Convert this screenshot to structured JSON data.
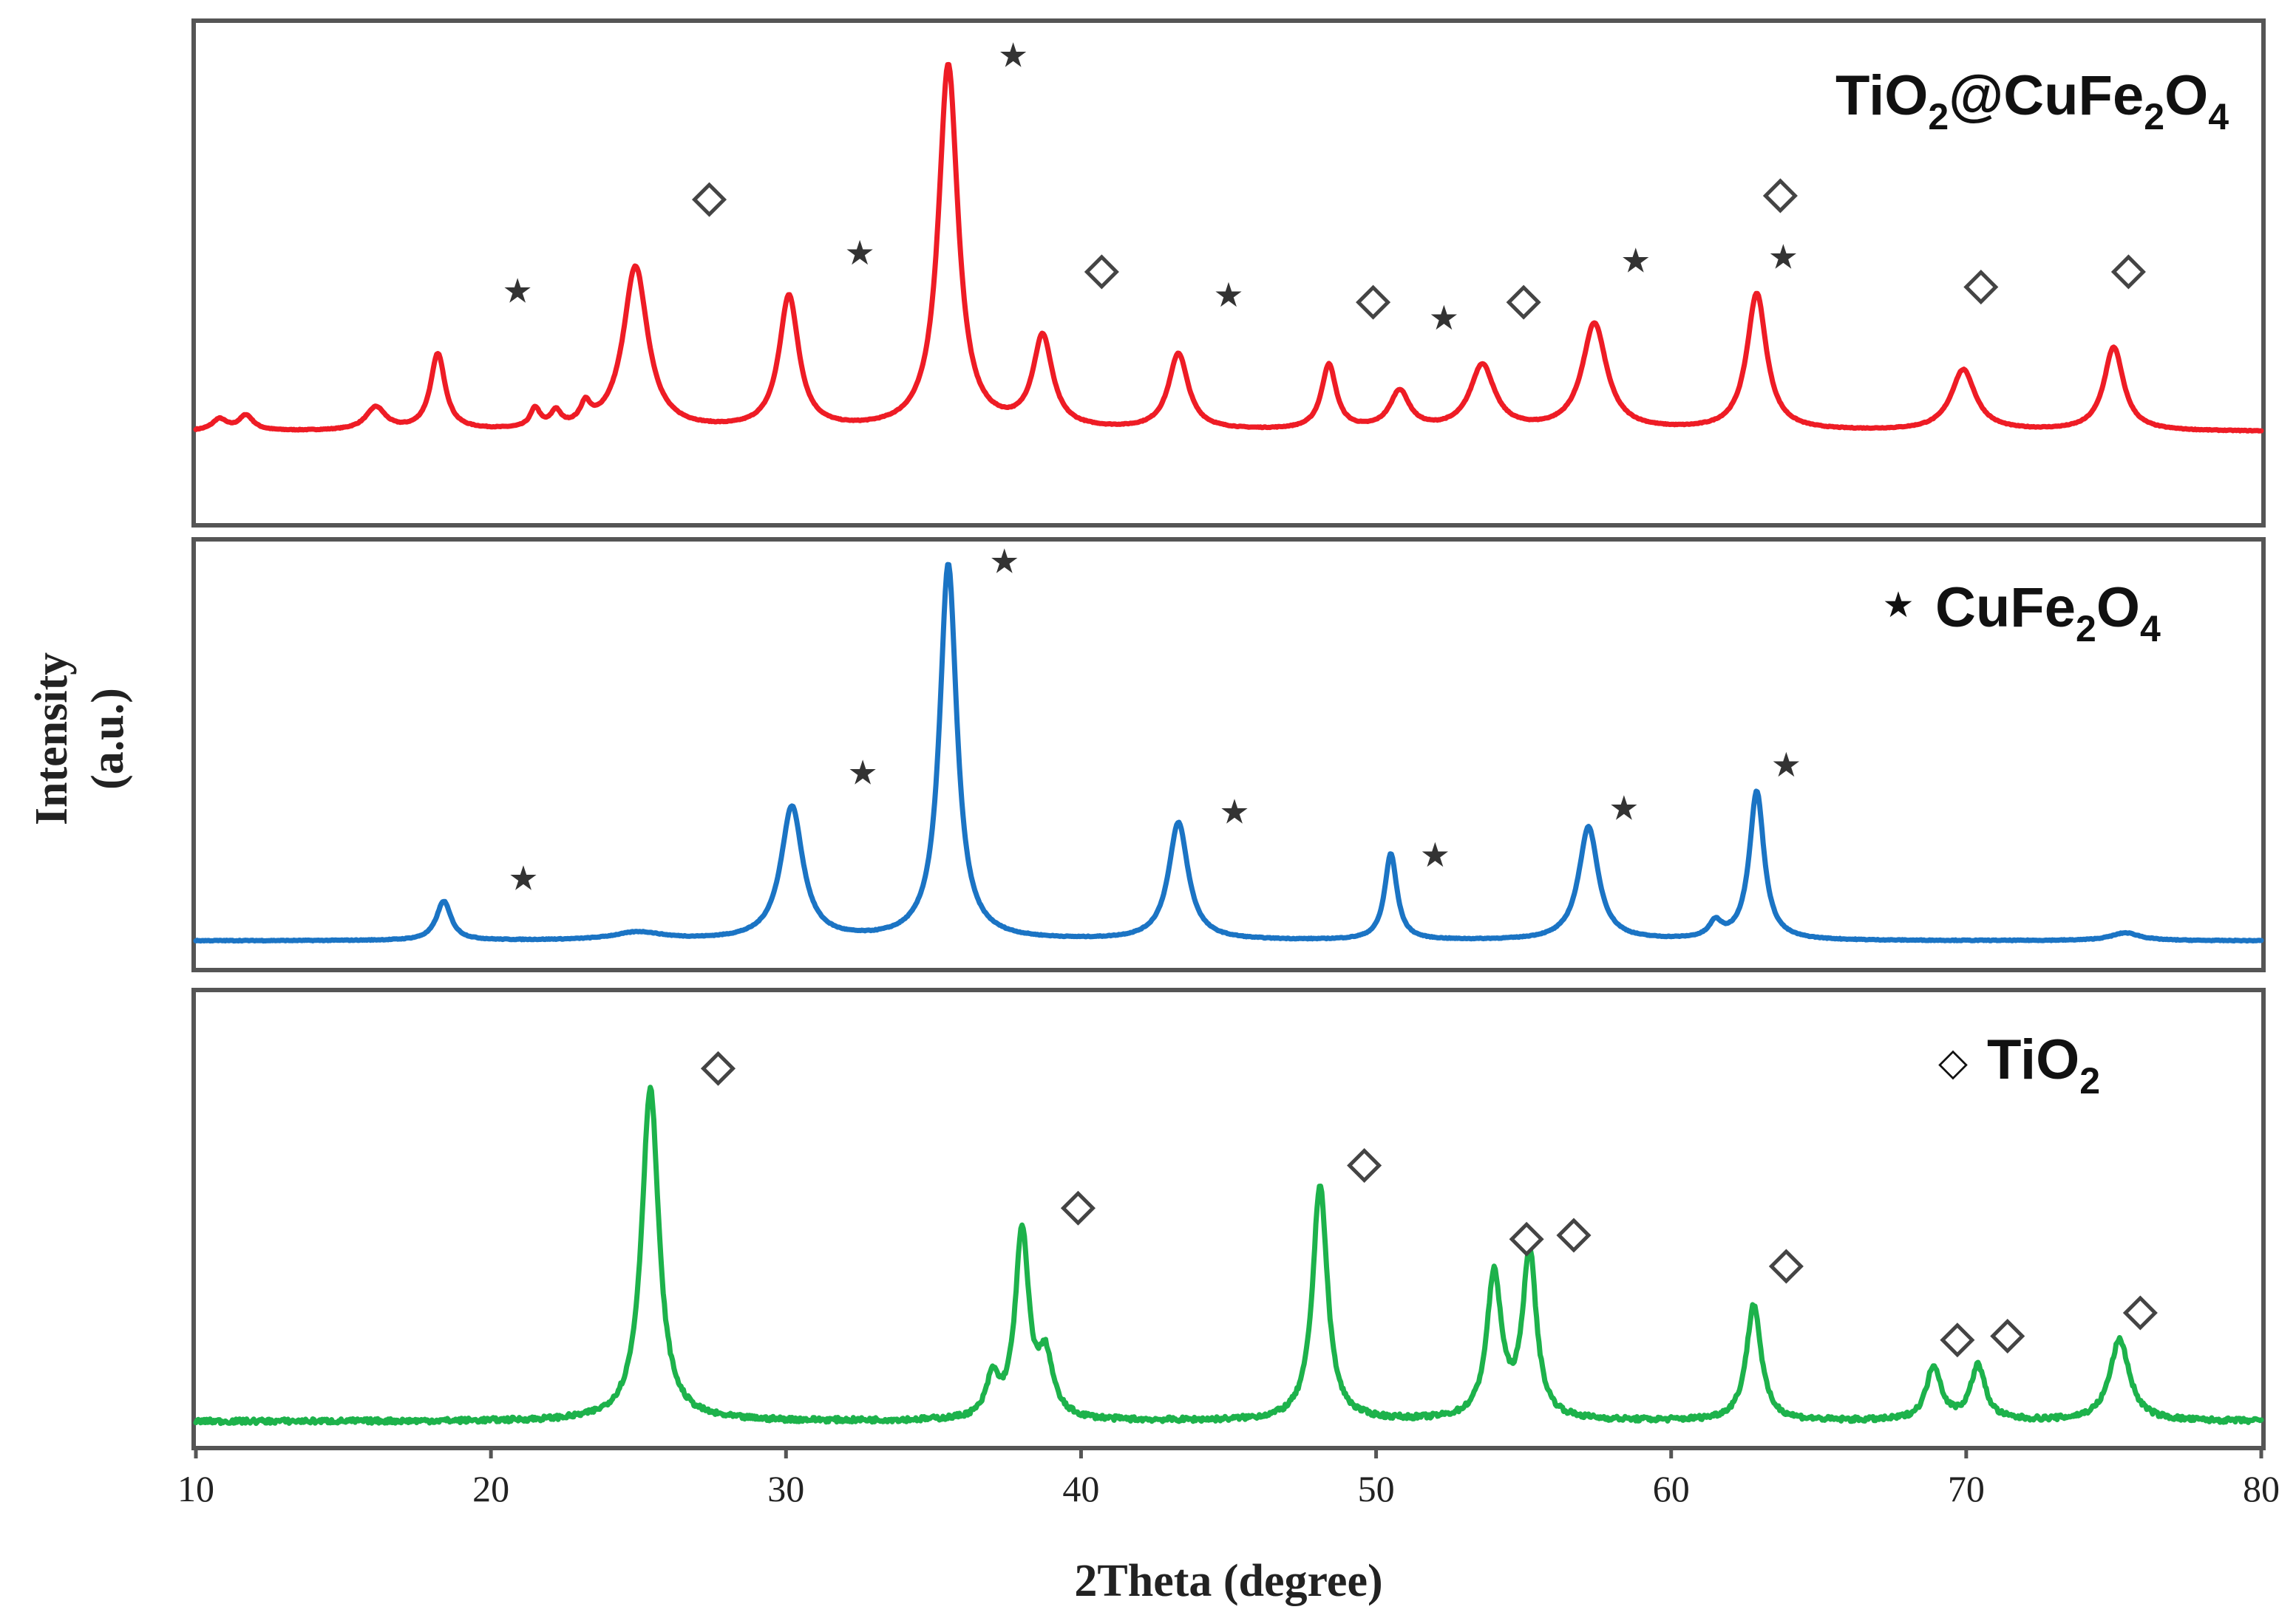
{
  "chart_data": {
    "type": "line",
    "xlabel": "2Theta (degree)",
    "ylabel_line1": "Intensity",
    "ylabel_line2": "(a.u.)",
    "xlim": [
      10,
      80
    ],
    "x_ticks": [
      "10",
      "20",
      "30",
      "40",
      "50",
      "60",
      "70",
      "80"
    ],
    "grid": false,
    "legend": {
      "star_symbol": "★",
      "star_label": "CuFe2O4",
      "diamond_symbol": "◇",
      "diamond_label": "TiO2"
    },
    "panels": [
      {
        "name": "TiO2@CuFe2O4",
        "label": {
          "base1": "TiO",
          "sub1": "2",
          "base2": "@CuFe",
          "sub2": "2",
          "base3": "O",
          "sub3": "4"
        },
        "color": "#ee1c25",
        "baseline": 0.05,
        "peaks": [
          {
            "x": 10.8,
            "h": 0.03,
            "w": 0.3
          },
          {
            "x": 11.7,
            "h": 0.04,
            "w": 0.3
          },
          {
            "x": 16.1,
            "h": 0.06,
            "w": 0.4
          },
          {
            "x": 18.2,
            "h": 0.2,
            "w": 0.3
          },
          {
            "x": 21.5,
            "h": 0.05,
            "w": 0.2
          },
          {
            "x": 22.2,
            "h": 0.04,
            "w": 0.2
          },
          {
            "x": 23.2,
            "h": 0.05,
            "w": 0.2
          },
          {
            "x": 24.9,
            "h": 0.43,
            "w": 0.5
          },
          {
            "x": 30.1,
            "h": 0.35,
            "w": 0.4
          },
          {
            "x": 35.5,
            "h": 0.96,
            "w": 0.4
          },
          {
            "x": 38.7,
            "h": 0.24,
            "w": 0.4
          },
          {
            "x": 43.3,
            "h": 0.2,
            "w": 0.4
          },
          {
            "x": 48.4,
            "h": 0.17,
            "w": 0.3
          },
          {
            "x": 50.8,
            "h": 0.1,
            "w": 0.4
          },
          {
            "x": 53.6,
            "h": 0.17,
            "w": 0.5
          },
          {
            "x": 57.4,
            "h": 0.28,
            "w": 0.5
          },
          {
            "x": 62.9,
            "h": 0.36,
            "w": 0.4
          },
          {
            "x": 69.9,
            "h": 0.16,
            "w": 0.5
          },
          {
            "x": 75.0,
            "h": 0.22,
            "w": 0.4
          }
        ],
        "stars": [
          20.9,
          32.5,
          37.7,
          45.0,
          52.3,
          58.8,
          63.8
        ],
        "star_heights": [
          0.42,
          0.52,
          1.04,
          0.41,
          0.35,
          0.5,
          0.51
        ],
        "diamonds": [
          27.4,
          40.7,
          49.9,
          55.0,
          63.7,
          70.5,
          75.5
        ],
        "diamond_heights": [
          0.66,
          0.47,
          0.39,
          0.39,
          0.67,
          0.43,
          0.47
        ]
      },
      {
        "name": "CuFe2O4",
        "label": {
          "base1": "CuFe",
          "sub1": "2",
          "base2": "O",
          "sub2": "4"
        },
        "color": "#1b74c4",
        "baseline": 0.05,
        "peaks": [
          {
            "x": 18.4,
            "h": 0.1,
            "w": 0.3
          },
          {
            "x": 25.0,
            "h": 0.02,
            "w": 1.0
          },
          {
            "x": 30.2,
            "h": 0.34,
            "w": 0.45
          },
          {
            "x": 35.5,
            "h": 0.96,
            "w": 0.35
          },
          {
            "x": 43.3,
            "h": 0.3,
            "w": 0.4
          },
          {
            "x": 50.5,
            "h": 0.22,
            "w": 0.25
          },
          {
            "x": 57.2,
            "h": 0.29,
            "w": 0.4
          },
          {
            "x": 61.5,
            "h": 0.04,
            "w": 0.25
          },
          {
            "x": 62.9,
            "h": 0.38,
            "w": 0.3
          },
          {
            "x": 75.4,
            "h": 0.02,
            "w": 0.6
          }
        ],
        "stars": [
          21.1,
          32.6,
          37.4,
          45.2,
          52.0,
          58.4,
          63.9
        ],
        "star_heights": [
          0.21,
          0.48,
          1.02,
          0.38,
          0.27,
          0.39,
          0.5
        ],
        "diamonds": [],
        "diamond_heights": []
      },
      {
        "name": "TiO2",
        "label": {
          "base1": "TiO",
          "sub1": "2"
        },
        "color": "#1db24b",
        "baseline": 0.04,
        "peaks": [
          {
            "x": 25.4,
            "h": 0.86,
            "w": 0.35
          },
          {
            "x": 37.0,
            "h": 0.1,
            "w": 0.25
          },
          {
            "x": 38.0,
            "h": 0.48,
            "w": 0.28
          },
          {
            "x": 38.8,
            "h": 0.15,
            "w": 0.3
          },
          {
            "x": 48.1,
            "h": 0.61,
            "w": 0.3
          },
          {
            "x": 54.0,
            "h": 0.37,
            "w": 0.3
          },
          {
            "x": 55.2,
            "h": 0.43,
            "w": 0.28
          },
          {
            "x": 62.8,
            "h": 0.3,
            "w": 0.3
          },
          {
            "x": 68.9,
            "h": 0.14,
            "w": 0.3
          },
          {
            "x": 70.4,
            "h": 0.14,
            "w": 0.3
          },
          {
            "x": 75.2,
            "h": 0.21,
            "w": 0.4
          }
        ],
        "stars": [],
        "star_heights": [],
        "diamonds": [
          27.7,
          39.9,
          49.6,
          55.1,
          56.7,
          63.9,
          69.7,
          71.4,
          75.9
        ],
        "diamond_heights": [
          0.95,
          0.59,
          0.7,
          0.51,
          0.52,
          0.44,
          0.25,
          0.26,
          0.32
        ]
      }
    ]
  }
}
